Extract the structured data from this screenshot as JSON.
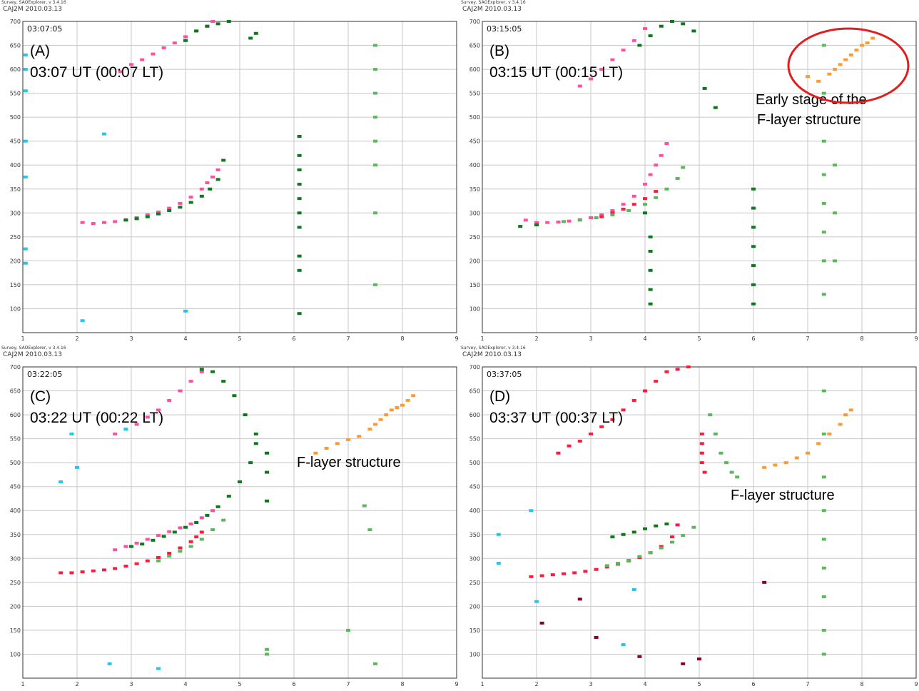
{
  "header": {
    "software": "Survey, SAOExplorer, v 3.4.16",
    "station": "CAJ2M 2010.03.13"
  },
  "axes": {
    "x_range": [
      1,
      9
    ],
    "y_range": [
      50,
      700
    ],
    "x_ticks": [
      "1",
      "2",
      "3",
      "4",
      "5",
      "6",
      "7",
      "8",
      "9"
    ],
    "y_ticks": [
      "100",
      "150",
      "200",
      "250",
      "300",
      "350",
      "400",
      "450",
      "500",
      "550",
      "600",
      "650",
      "700"
    ],
    "grid": true
  },
  "colors": {
    "pink": "#ff4fa0",
    "red": "#ff1a3c",
    "dark_green": "#0a7a1a",
    "light_green": "#5cb85c",
    "orange": "#ff9933",
    "cyan": "#22c7f0",
    "maroon": "#8b0030",
    "ellipse": "#e02020"
  },
  "chart_data": [
    {
      "type": "scatter",
      "panel": "A",
      "timestamp": "03:07:05",
      "label": "(A)",
      "time_label": "03:07 UT (00:07 LT)",
      "annotation": "",
      "highlight_ellipse": false,
      "series": [
        {
          "color": "pink",
          "x": [
            2.1,
            2.3,
            2.5,
            2.7,
            2.9,
            3.1,
            3.3,
            3.5,
            3.7,
            3.9,
            4.1,
            4.3,
            4.4,
            4.5,
            4.6
          ],
          "y": [
            280,
            278,
            280,
            282,
            286,
            290,
            296,
            302,
            310,
            320,
            333,
            350,
            363,
            375,
            390
          ]
        },
        {
          "color": "dark_green",
          "x": [
            2.9,
            3.1,
            3.3,
            3.5,
            3.7,
            3.9,
            4.1,
            4.3,
            4.45,
            4.6,
            4.7
          ],
          "y": [
            285,
            288,
            292,
            298,
            305,
            312,
            322,
            335,
            350,
            370,
            410
          ]
        },
        {
          "color": "pink",
          "x": [
            2.8,
            3.0,
            3.2,
            3.4,
            3.6,
            3.8,
            4.0,
            4.2,
            4.4,
            4.5
          ],
          "y": [
            595,
            610,
            620,
            632,
            645,
            655,
            668,
            680,
            690,
            700
          ]
        },
        {
          "color": "dark_green",
          "x": [
            4.0,
            4.2,
            4.4,
            4.6,
            4.8,
            5.2,
            5.3
          ],
          "y": [
            660,
            680,
            690,
            695,
            700,
            665,
            675
          ]
        },
        {
          "color": "dark_green",
          "x": [
            6.1,
            6.1,
            6.1,
            6.1,
            6.1,
            6.1,
            6.1,
            6.1,
            6.1,
            6.1
          ],
          "y": [
            460,
            420,
            390,
            360,
            330,
            300,
            270,
            210,
            180,
            90
          ]
        },
        {
          "color": "light_green",
          "x": [
            7.5,
            7.5,
            7.5,
            7.5,
            7.5,
            7.5,
            7.5,
            7.5
          ],
          "y": [
            650,
            600,
            550,
            500,
            450,
            400,
            300,
            150
          ]
        },
        {
          "color": "cyan",
          "x": [
            1.05,
            1.05,
            1.05,
            1.05,
            1.05,
            1.05,
            1.05,
            2.1,
            2.5,
            4.0
          ],
          "y": [
            630,
            600,
            555,
            450,
            375,
            225,
            195,
            75,
            465,
            95
          ]
        }
      ]
    },
    {
      "type": "scatter",
      "panel": "B",
      "timestamp": "03:15:05",
      "label": "(B)",
      "time_label": "03:15 UT (00:15 LT)",
      "annotation": "Early stage of the F-layer structure",
      "highlight_ellipse": true,
      "series": [
        {
          "color": "pink",
          "x": [
            1.8,
            2.0,
            2.2,
            2.4,
            2.6,
            2.8,
            3.0,
            3.2,
            3.4,
            3.6,
            3.8,
            4.0,
            4.1,
            4.2,
            4.3,
            4.4
          ],
          "y": [
            285,
            280,
            280,
            281,
            283,
            286,
            290,
            296,
            305,
            318,
            335,
            360,
            380,
            400,
            420,
            445
          ]
        },
        {
          "color": "red",
          "x": [
            3.2,
            3.4,
            3.6,
            3.8,
            4.0,
            4.2
          ],
          "y": [
            292,
            300,
            308,
            318,
            330,
            345
          ]
        },
        {
          "color": "light_green",
          "x": [
            2.5,
            2.8,
            3.1,
            3.4,
            3.7,
            4.0,
            4.2,
            4.4,
            4.6,
            4.7
          ],
          "y": [
            282,
            285,
            290,
            296,
            305,
            318,
            332,
            350,
            372,
            395
          ]
        },
        {
          "color": "dark_green",
          "x": [
            1.7,
            2.0,
            4.0,
            4.1,
            4.1,
            4.1,
            4.1,
            4.1,
            6.0,
            6.0,
            6.0,
            6.0,
            6.0,
            6.0,
            6.0
          ],
          "y": [
            272,
            275,
            300,
            250,
            220,
            180,
            140,
            110,
            350,
            310,
            270,
            230,
            190,
            150,
            110
          ]
        },
        {
          "color": "pink",
          "x": [
            2.8,
            3.0,
            3.2,
            3.4,
            3.6,
            3.8,
            4.0
          ],
          "y": [
            565,
            580,
            600,
            620,
            640,
            660,
            685
          ]
        },
        {
          "color": "dark_green",
          "x": [
            3.9,
            4.1,
            4.3,
            4.5,
            4.7,
            4.9,
            5.1,
            5.3
          ],
          "y": [
            650,
            670,
            690,
            700,
            695,
            680,
            560,
            520
          ]
        },
        {
          "color": "orange",
          "x": [
            7.0,
            7.2,
            7.4,
            7.5,
            7.6,
            7.7,
            7.8,
            7.9,
            8.0,
            8.1,
            8.2
          ],
          "y": [
            585,
            575,
            590,
            600,
            610,
            620,
            630,
            640,
            650,
            655,
            665
          ]
        },
        {
          "color": "light_green",
          "x": [
            7.3,
            7.3,
            7.3,
            7.3,
            7.3,
            7.3,
            7.3,
            7.3,
            7.5,
            7.5,
            7.5
          ],
          "y": [
            650,
            550,
            450,
            380,
            320,
            260,
            200,
            130,
            400,
            300,
            200
          ]
        }
      ]
    },
    {
      "type": "scatter",
      "panel": "C",
      "timestamp": "03:22:05",
      "label": "(C)",
      "time_label": "03:22 UT (00:22 LT)",
      "annotation": "F-layer structure",
      "highlight_ellipse": false,
      "series": [
        {
          "color": "red",
          "x": [
            1.7,
            1.9,
            2.1,
            2.3,
            2.5,
            2.7,
            2.9,
            3.1,
            3.3,
            3.5,
            3.7,
            3.9,
            4.1,
            4.2,
            4.3
          ],
          "y": [
            270,
            270,
            272,
            274,
            276,
            279,
            284,
            289,
            295,
            302,
            311,
            322,
            335,
            345,
            355
          ]
        },
        {
          "color": "pink",
          "x": [
            2.7,
            2.9,
            3.1,
            3.3,
            3.5,
            3.7,
            3.9,
            4.1,
            4.3,
            4.5
          ],
          "y": [
            318,
            325,
            332,
            340,
            348,
            356,
            364,
            372,
            385,
            400
          ]
        },
        {
          "color": "dark_green",
          "x": [
            3.0,
            3.2,
            3.4,
            3.6,
            3.8,
            4.0,
            4.2,
            4.4,
            4.6,
            4.8,
            5.0,
            5.2,
            5.3
          ],
          "y": [
            325,
            330,
            338,
            346,
            355,
            365,
            375,
            390,
            408,
            430,
            460,
            500,
            540
          ]
        },
        {
          "color": "light_green",
          "x": [
            3.5,
            3.7,
            3.9,
            4.1,
            4.3,
            4.5,
            4.7
          ],
          "y": [
            295,
            305,
            315,
            325,
            340,
            360,
            380
          ]
        },
        {
          "color": "pink",
          "x": [
            2.7,
            2.9,
            3.1,
            3.3,
            3.5,
            3.7,
            3.9,
            4.1,
            4.3
          ],
          "y": [
            560,
            570,
            580,
            595,
            610,
            630,
            650,
            670,
            690
          ]
        },
        {
          "color": "dark_green",
          "x": [
            4.3,
            4.5,
            4.7,
            4.9,
            5.1,
            5.3,
            5.5,
            5.5,
            5.5
          ],
          "y": [
            695,
            690,
            670,
            640,
            600,
            560,
            520,
            480,
            420
          ]
        },
        {
          "color": "orange",
          "x": [
            6.4,
            6.6,
            6.8,
            7.0,
            7.2,
            7.4,
            7.5,
            7.6,
            7.7,
            7.8,
            7.9,
            8.0,
            8.1,
            8.2
          ],
          "y": [
            520,
            530,
            540,
            548,
            555,
            570,
            580,
            590,
            600,
            610,
            615,
            620,
            630,
            640
          ]
        },
        {
          "color": "light_green",
          "x": [
            5.5,
            5.5,
            7.0,
            7.3,
            7.4,
            7.5
          ],
          "y": [
            110,
            100,
            150,
            410,
            360,
            80
          ]
        },
        {
          "color": "cyan",
          "x": [
            1.7,
            1.9,
            2.0,
            2.6,
            2.9,
            3.5
          ],
          "y": [
            460,
            560,
            490,
            80,
            570,
            70
          ]
        }
      ]
    },
    {
      "type": "scatter",
      "panel": "D",
      "timestamp": "03:37:05",
      "label": "(D)",
      "time_label": "03:37 UT (00:37 LT)",
      "annotation": "F-layer structure",
      "highlight_ellipse": false,
      "series": [
        {
          "color": "red",
          "x": [
            1.9,
            2.1,
            2.3,
            2.5,
            2.7,
            2.9,
            3.1,
            3.3,
            3.5,
            3.7,
            3.9,
            4.1,
            4.3,
            4.5,
            4.6
          ],
          "y": [
            262,
            264,
            266,
            268,
            270,
            273,
            277,
            282,
            288,
            295,
            302,
            312,
            325,
            345,
            370
          ]
        },
        {
          "color": "light_green",
          "x": [
            3.3,
            3.5,
            3.7,
            3.9,
            4.1,
            4.3,
            4.5,
            4.7,
            4.9
          ],
          "y": [
            285,
            290,
            296,
            304,
            312,
            322,
            334,
            348,
            365
          ]
        },
        {
          "color": "dark_green",
          "x": [
            3.4,
            3.6,
            3.8,
            4.0,
            4.2,
            4.4
          ],
          "y": [
            345,
            350,
            355,
            362,
            368,
            372
          ]
        },
        {
          "color": "red",
          "x": [
            2.4,
            2.6,
            2.8,
            3.0,
            3.2,
            3.4,
            3.6,
            3.8,
            4.0,
            4.2,
            4.4,
            4.6,
            4.8
          ],
          "y": [
            520,
            535,
            545,
            560,
            575,
            590,
            610,
            630,
            650,
            670,
            690,
            695,
            700
          ]
        },
        {
          "color": "red",
          "x": [
            5.05,
            5.05,
            5.05,
            5.05,
            5.1
          ],
          "y": [
            560,
            540,
            520,
            500,
            480
          ]
        },
        {
          "color": "light_green",
          "x": [
            5.2,
            5.3,
            5.4,
            5.5,
            5.6,
            5.7
          ],
          "y": [
            600,
            560,
            520,
            500,
            480,
            470
          ]
        },
        {
          "color": "orange",
          "x": [
            6.2,
            6.4,
            6.6,
            6.8,
            7.0,
            7.2,
            7.4,
            7.6,
            7.7,
            7.8
          ],
          "y": [
            490,
            495,
            500,
            510,
            520,
            540,
            560,
            580,
            600,
            610
          ]
        },
        {
          "color": "light_green",
          "x": [
            7.3,
            7.3,
            7.3,
            7.3,
            7.3,
            7.3,
            7.3,
            7.3,
            7.3
          ],
          "y": [
            650,
            560,
            470,
            400,
            340,
            280,
            220,
            150,
            100
          ]
        },
        {
          "color": "cyan",
          "x": [
            1.3,
            1.3,
            1.9,
            2.0,
            3.6,
            3.8
          ],
          "y": [
            350,
            290,
            400,
            210,
            120,
            235
          ]
        },
        {
          "color": "maroon",
          "x": [
            2.1,
            2.8,
            3.1,
            3.9,
            4.7,
            5.0,
            6.2
          ],
          "y": [
            165,
            215,
            135,
            95,
            80,
            90,
            250
          ]
        }
      ]
    }
  ]
}
